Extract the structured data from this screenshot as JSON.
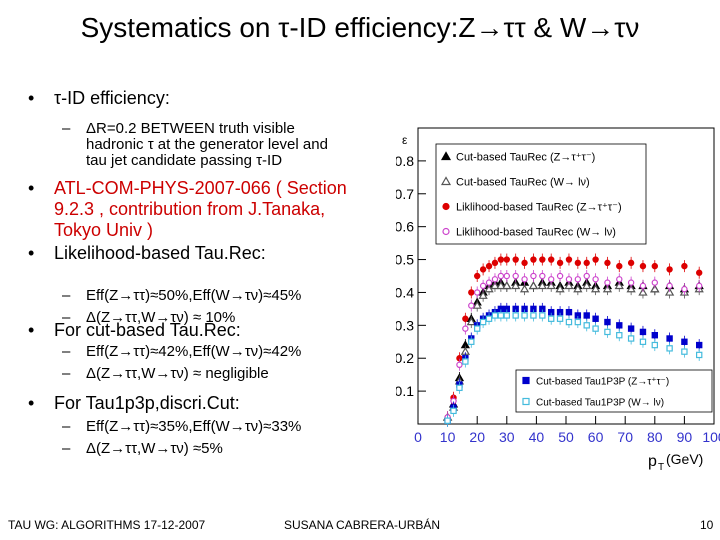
{
  "slide": {
    "title": "Systematics on τ-ID efficiency:Z→ττ & W→τν",
    "bullets": [
      {
        "level": 1,
        "text": "τ-ID efficiency:"
      },
      {
        "level": 2,
        "text": "ΔR=0.2 BETWEEN truth visible\nhadronic τ at the generator level and\ntau jet candidate passing τ-ID"
      },
      {
        "level": 1,
        "text": "ATL-COM-PHYS-2007-066 ( Section\n9.2.3 , contribution from J.Tanaka,\nTokyo Univ )",
        "color": "#cc0000"
      },
      {
        "level": 1,
        "text": "Likelihood-based Tau.Rec:"
      },
      {
        "level": 2,
        "text": "Eff(Z→ττ)≈50%,Eff(W→τν)≈45%"
      },
      {
        "level": 2,
        "text": "Δ(Z→ττ,W→τν) ≈ 10%"
      },
      {
        "level": 1,
        "text": "For cut-based Tau.Rec:"
      },
      {
        "level": 2,
        "text": "Eff(Z→ττ)≈42%,Eff(W→τν)≈42%"
      },
      {
        "level": 2,
        "text": "Δ(Z→ττ,W→τν) ≈ negligible"
      },
      {
        "level": 1,
        "text": "For Tau1p3p,discri.Cut:"
      },
      {
        "level": 2,
        "text": "Eff(Z→ττ)≈35%,Eff(W→τν)≈33%"
      },
      {
        "level": 2,
        "text": "Δ(Z→ττ,W→τν) ≈5%"
      }
    ],
    "bullet_symbol": "•",
    "dash_symbol": "–",
    "footer": {
      "left": "TAU WG: ALGORITHMS 17-12-2007",
      "center": "SUSANA CABRERA-URBÁN",
      "page": "10"
    }
  },
  "chart_data": {
    "type": "scatter",
    "ylabel": "ε",
    "xlabel": "p_T (GeV)",
    "xlabel_main": "p",
    "xlabel_sub": "T",
    "xlabel_unit": "(GeV)",
    "xlim": [
      0,
      100
    ],
    "ylim": [
      0,
      0.9
    ],
    "xticks": [
      "0",
      "10",
      "20",
      "30",
      "40",
      "50",
      "60",
      "70",
      "80",
      "90",
      "100"
    ],
    "yticks": [
      "0.1",
      "0.2",
      "0.3",
      "0.4",
      "0.5",
      "0.6",
      "0.7",
      "0.8"
    ],
    "x": [
      10,
      12,
      14,
      16,
      18,
      20,
      22,
      24,
      26,
      28,
      30,
      33,
      36,
      39,
      42,
      45,
      48,
      51,
      54,
      57,
      60,
      64,
      68,
      72,
      76,
      80,
      85,
      90,
      95
    ],
    "series": [
      {
        "name": "Cut-based TauRec (Z→τ⁺τ⁻)",
        "color": "#000000",
        "marker": "triangle-filled",
        "values": [
          0.02,
          0.06,
          0.14,
          0.24,
          0.32,
          0.37,
          0.4,
          0.42,
          0.43,
          0.43,
          0.42,
          0.43,
          0.43,
          0.42,
          0.43,
          0.43,
          0.42,
          0.43,
          0.42,
          0.43,
          0.42,
          0.42,
          0.43,
          0.42,
          0.42,
          0.41,
          0.42,
          0.41,
          0.42
        ]
      },
      {
        "name": "Cut-based TauRec (W→ lν)",
        "color": "#555555",
        "marker": "triangle-open",
        "values": [
          0.02,
          0.05,
          0.13,
          0.22,
          0.31,
          0.36,
          0.39,
          0.41,
          0.42,
          0.42,
          0.42,
          0.42,
          0.41,
          0.42,
          0.42,
          0.42,
          0.41,
          0.42,
          0.41,
          0.42,
          0.41,
          0.41,
          0.42,
          0.41,
          0.4,
          0.41,
          0.4,
          0.4,
          0.41
        ]
      },
      {
        "name": "Liklihood-based TauRec (Z→τ⁺τ⁻)",
        "color": "#dd0000",
        "marker": "circle-filled",
        "values": [
          0.02,
          0.08,
          0.2,
          0.32,
          0.4,
          0.45,
          0.47,
          0.48,
          0.49,
          0.5,
          0.5,
          0.5,
          0.49,
          0.5,
          0.5,
          0.5,
          0.49,
          0.5,
          0.49,
          0.49,
          0.5,
          0.49,
          0.48,
          0.49,
          0.48,
          0.48,
          0.47,
          0.48,
          0.46
        ]
      },
      {
        "name": "Liklihood-based TauRec (W→ lν)",
        "color": "#cc44cc",
        "marker": "circle-open",
        "values": [
          0.02,
          0.07,
          0.18,
          0.29,
          0.36,
          0.4,
          0.42,
          0.43,
          0.44,
          0.45,
          0.45,
          0.45,
          0.44,
          0.45,
          0.45,
          0.44,
          0.45,
          0.44,
          0.44,
          0.45,
          0.44,
          0.43,
          0.44,
          0.43,
          0.42,
          0.43,
          0.42,
          0.41,
          0.42
        ]
      },
      {
        "name": "Cut-based Tau1P3P (Z→τ⁺τ⁻)",
        "color": "#0000cc",
        "marker": "square-filled",
        "values": [
          0.01,
          0.05,
          0.12,
          0.2,
          0.26,
          0.3,
          0.32,
          0.33,
          0.34,
          0.35,
          0.35,
          0.35,
          0.35,
          0.35,
          0.35,
          0.34,
          0.34,
          0.34,
          0.33,
          0.33,
          0.32,
          0.31,
          0.3,
          0.29,
          0.28,
          0.27,
          0.26,
          0.25,
          0.24
        ]
      },
      {
        "name": "Cut-based Tau1P3P (W→ lν)",
        "color": "#44bbdd",
        "marker": "square-open",
        "values": [
          0.01,
          0.04,
          0.11,
          0.19,
          0.25,
          0.29,
          0.31,
          0.32,
          0.33,
          0.33,
          0.33,
          0.33,
          0.33,
          0.33,
          0.33,
          0.32,
          0.32,
          0.31,
          0.31,
          0.3,
          0.29,
          0.28,
          0.27,
          0.26,
          0.25,
          0.24,
          0.23,
          0.22,
          0.21
        ]
      }
    ],
    "legend_groups": [
      {
        "position": "top-right",
        "series": [
          0,
          1,
          2,
          3
        ]
      },
      {
        "position": "bottom-right",
        "series": [
          4,
          5
        ]
      }
    ],
    "grid": false
  }
}
